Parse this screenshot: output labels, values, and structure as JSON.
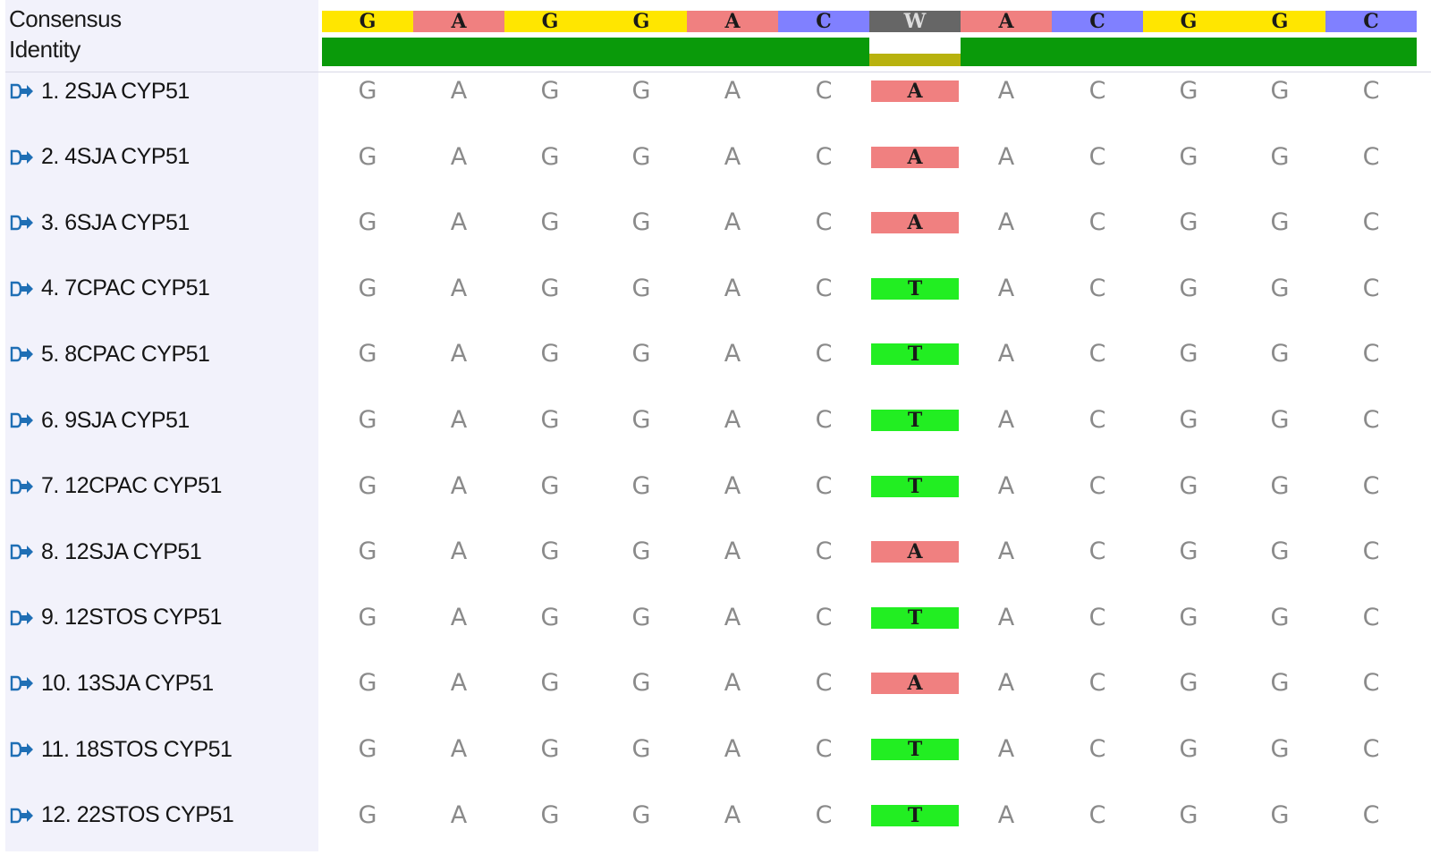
{
  "header": {
    "consensus_label": "Consensus",
    "identity_label": "Identity"
  },
  "consensus": [
    "G",
    "A",
    "G",
    "G",
    "A",
    "C",
    "W",
    "A",
    "C",
    "G",
    "G",
    "C"
  ],
  "identity": [
    "full",
    "full",
    "full",
    "full",
    "full",
    "full",
    "partial",
    "full",
    "full",
    "full",
    "full",
    "full"
  ],
  "colors": {
    "G": "#ffe600",
    "A": "#f08080",
    "C": "#8080ff",
    "T": "#22ee22",
    "W": "#666666",
    "identity_full": "#0a9a0a",
    "identity_partial": "#b8b20e",
    "panel_bg": "#f2f2fb",
    "icon": "#1f6fb5"
  },
  "sequences": [
    {
      "label": "1. 2SJA CYP51",
      "bases": [
        "G",
        "A",
        "G",
        "G",
        "A",
        "C",
        "A",
        "A",
        "C",
        "G",
        "G",
        "C"
      ]
    },
    {
      "label": "2. 4SJA CYP51",
      "bases": [
        "G",
        "A",
        "G",
        "G",
        "A",
        "C",
        "A",
        "A",
        "C",
        "G",
        "G",
        "C"
      ]
    },
    {
      "label": "3. 6SJA CYP51",
      "bases": [
        "G",
        "A",
        "G",
        "G",
        "A",
        "C",
        "A",
        "A",
        "C",
        "G",
        "G",
        "C"
      ]
    },
    {
      "label": "4. 7CPAC CYP51",
      "bases": [
        "G",
        "A",
        "G",
        "G",
        "A",
        "C",
        "T",
        "A",
        "C",
        "G",
        "G",
        "C"
      ]
    },
    {
      "label": "5. 8CPAC CYP51",
      "bases": [
        "G",
        "A",
        "G",
        "G",
        "A",
        "C",
        "T",
        "A",
        "C",
        "G",
        "G",
        "C"
      ]
    },
    {
      "label": "6. 9SJA CYP51",
      "bases": [
        "G",
        "A",
        "G",
        "G",
        "A",
        "C",
        "T",
        "A",
        "C",
        "G",
        "G",
        "C"
      ]
    },
    {
      "label": "7. 12CPAC CYP51",
      "bases": [
        "G",
        "A",
        "G",
        "G",
        "A",
        "C",
        "T",
        "A",
        "C",
        "G",
        "G",
        "C"
      ]
    },
    {
      "label": "8. 12SJA CYP51",
      "bases": [
        "G",
        "A",
        "G",
        "G",
        "A",
        "C",
        "A",
        "A",
        "C",
        "G",
        "G",
        "C"
      ]
    },
    {
      "label": "9. 12STOS CYP51",
      "bases": [
        "G",
        "A",
        "G",
        "G",
        "A",
        "C",
        "T",
        "A",
        "C",
        "G",
        "G",
        "C"
      ]
    },
    {
      "label": "10. 13SJA CYP51",
      "bases": [
        "G",
        "A",
        "G",
        "G",
        "A",
        "C",
        "A",
        "A",
        "C",
        "G",
        "G",
        "C"
      ]
    },
    {
      "label": "11. 18STOS CYP51",
      "bases": [
        "G",
        "A",
        "G",
        "G",
        "A",
        "C",
        "T",
        "A",
        "C",
        "G",
        "G",
        "C"
      ]
    },
    {
      "label": "12. 22STOS CYP51",
      "bases": [
        "G",
        "A",
        "G",
        "G",
        "A",
        "C",
        "T",
        "A",
        "C",
        "G",
        "G",
        "C"
      ]
    }
  ],
  "variable_column": 6,
  "row_icon": "sequence-arrow-icon"
}
